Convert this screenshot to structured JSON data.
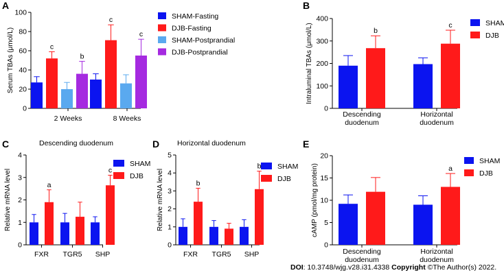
{
  "footer": {
    "doi_label": "DOI",
    "doi_text": ": 10.3748/wjg.v28.i31.4338 ",
    "copyright_label": "Copyright",
    "copyright_text": " ©The Author(s) 2022."
  },
  "chart_data": [
    {
      "panel": "A",
      "type": "bar",
      "title": "",
      "ylabel": "Serum TBAs (μmol/L)",
      "xlabel": "",
      "ylim": [
        0,
        100
      ],
      "yticks": [
        0,
        20,
        40,
        60,
        80,
        100
      ],
      "categories": [
        "2 Weeks",
        "8 Weeks"
      ],
      "series": [
        {
          "name": "SHAM-Fasting",
          "color": "#0b14f0",
          "values": [
            27,
            30
          ],
          "errors": [
            6,
            6
          ],
          "letters": [
            "",
            ""
          ]
        },
        {
          "name": "DJB-Fasting",
          "color": "#ff1a1a",
          "values": [
            52,
            71
          ],
          "errors": [
            7,
            16
          ],
          "letters": [
            "c",
            "c"
          ]
        },
        {
          "name": "SHAM-Postprandial",
          "color": "#5aa9ef",
          "values": [
            20,
            26
          ],
          "errors": [
            7,
            9
          ],
          "letters": [
            "",
            ""
          ]
        },
        {
          "name": "DJB-Postprandial",
          "color": "#a52ae0",
          "values": [
            36,
            55
          ],
          "errors": [
            13,
            17
          ],
          "letters": [
            "b",
            "c"
          ]
        }
      ],
      "legend": "right"
    },
    {
      "panel": "B",
      "type": "bar",
      "title": "",
      "ylabel": "Intraluminal TBAs (μmol/L)",
      "xlabel": "",
      "ylim": [
        0,
        400
      ],
      "yticks": [
        0,
        100,
        200,
        300,
        400
      ],
      "categories": [
        "Descending|duodenum",
        "Horizontal|duodenum"
      ],
      "series": [
        {
          "name": "SHAM",
          "color": "#0b14f0",
          "values": [
            190,
            197
          ],
          "errors": [
            45,
            28
          ],
          "letters": [
            "",
            ""
          ]
        },
        {
          "name": "DJB",
          "color": "#ff1a1a",
          "values": [
            268,
            288
          ],
          "errors": [
            55,
            60
          ],
          "letters": [
            "b",
            "c"
          ]
        }
      ],
      "legend": "top-right"
    },
    {
      "panel": "C",
      "type": "bar",
      "title": "Descending duodenum",
      "ylabel": "Relative mRNA level",
      "xlabel": "",
      "ylim": [
        0,
        4
      ],
      "yticks": [
        0,
        1,
        2,
        3,
        4
      ],
      "categories": [
        "FXR",
        "TGR5",
        "SHP"
      ],
      "series": [
        {
          "name": "SHAM",
          "color": "#0b14f0",
          "values": [
            1.0,
            1.0,
            1.0
          ],
          "errors": [
            0.35,
            0.4,
            0.25
          ],
          "letters": [
            "",
            "",
            ""
          ]
        },
        {
          "name": "DJB",
          "color": "#ff1a1a",
          "values": [
            1.9,
            1.25,
            2.65
          ],
          "errors": [
            0.55,
            0.65,
            0.45
          ],
          "letters": [
            "a",
            "",
            "c"
          ]
        }
      ],
      "legend": "top-right"
    },
    {
      "panel": "D",
      "type": "bar",
      "title": "Horizontal duodenum",
      "ylabel": "Relative mRNA level",
      "xlabel": "",
      "ylim": [
        0,
        5
      ],
      "yticks": [
        0,
        1,
        2,
        3,
        4,
        5
      ],
      "categories": [
        "FXR",
        "TGR5",
        "SHP"
      ],
      "series": [
        {
          "name": "SHAM",
          "color": "#0b14f0",
          "values": [
            1.0,
            1.0,
            1.0
          ],
          "errors": [
            0.45,
            0.35,
            0.4
          ],
          "letters": [
            "",
            "",
            ""
          ]
        },
        {
          "name": "DJB",
          "color": "#ff1a1a",
          "values": [
            2.4,
            0.9,
            3.1
          ],
          "errors": [
            0.75,
            0.3,
            1.0
          ],
          "letters": [
            "b",
            "",
            "b"
          ]
        }
      ],
      "legend": "top-right"
    },
    {
      "panel": "E",
      "type": "bar",
      "title": "",
      "ylabel": "cAMP (pmol/mg protein)",
      "xlabel": "",
      "ylim": [
        0,
        20
      ],
      "yticks": [
        0,
        5,
        10,
        15,
        20
      ],
      "categories": [
        "Descending|duodenum",
        "Horizontal|duodenum"
      ],
      "series": [
        {
          "name": "SHAM",
          "color": "#0b14f0",
          "values": [
            9.2,
            9.0
          ],
          "errors": [
            2.0,
            2.0
          ],
          "letters": [
            "",
            ""
          ]
        },
        {
          "name": "DJB",
          "color": "#ff1a1a",
          "values": [
            11.9,
            13.0
          ],
          "errors": [
            3.2,
            3.0
          ],
          "letters": [
            "",
            "a"
          ]
        }
      ],
      "legend": "top-right"
    }
  ]
}
